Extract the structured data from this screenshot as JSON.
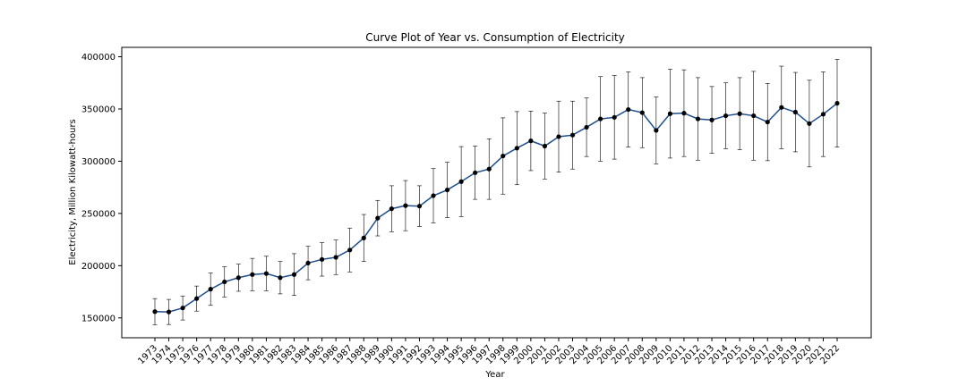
{
  "chart_data": {
    "type": "line",
    "title": "Curve Plot of Year vs. Consumption of Electricity",
    "xlabel": "Year",
    "ylabel": "Electricity, Million Kilowatt-hours",
    "ylim": [
      131000,
      409000
    ],
    "yticks": [
      150000,
      200000,
      250000,
      300000,
      350000,
      400000
    ],
    "grid": false,
    "colors": {
      "line": "#1f4e8c",
      "marker": "#000000",
      "errorbar": "#000000"
    },
    "categories": [
      "1973",
      "1974",
      "1975",
      "1976",
      "1977",
      "1978",
      "1979",
      "1980",
      "1981",
      "1982",
      "1983",
      "1984",
      "1985",
      "1986",
      "1987",
      "1988",
      "1989",
      "1990",
      "1991",
      "1992",
      "1993",
      "1994",
      "1995",
      "1996",
      "1997",
      "1998",
      "1999",
      "2000",
      "2001",
      "2002",
      "2003",
      "2004",
      "2005",
      "2006",
      "2007",
      "2008",
      "2009",
      "2010",
      "2011",
      "2012",
      "2013",
      "2014",
      "2015",
      "2016",
      "2017",
      "2018",
      "2019",
      "2020",
      "2021",
      "2022"
    ],
    "series": [
      {
        "values": [
          156000,
          155700,
          159500,
          168500,
          177500,
          184500,
          188500,
          191500,
          192500,
          188500,
          191500,
          202500,
          206000,
          208000,
          215000,
          226500,
          245500,
          254500,
          257500,
          257000,
          267000,
          272500,
          280500,
          289000,
          292500,
          305000,
          312500,
          319500,
          314500,
          323500,
          325000,
          332500,
          340500,
          342000,
          349500,
          346500,
          329500,
          345500,
          346000,
          340500,
          339500,
          343500,
          345500,
          343500,
          337500,
          351500,
          347000,
          336000,
          345000,
          355500
        ],
        "errors": [
          12500,
          12000,
          11500,
          12000,
          15500,
          14500,
          13000,
          15500,
          16500,
          15500,
          20000,
          16000,
          16000,
          16500,
          21000,
          22500,
          17000,
          22000,
          24000,
          19500,
          26000,
          26500,
          33500,
          25500,
          29000,
          36500,
          35000,
          28500,
          31500,
          34000,
          32500,
          28000,
          40500,
          40000,
          36000,
          33500,
          32000,
          42500,
          41500,
          39500,
          32000,
          31500,
          34500,
          42500,
          37000,
          39500,
          38000,
          41500,
          40500,
          42000
        ]
      }
    ]
  }
}
